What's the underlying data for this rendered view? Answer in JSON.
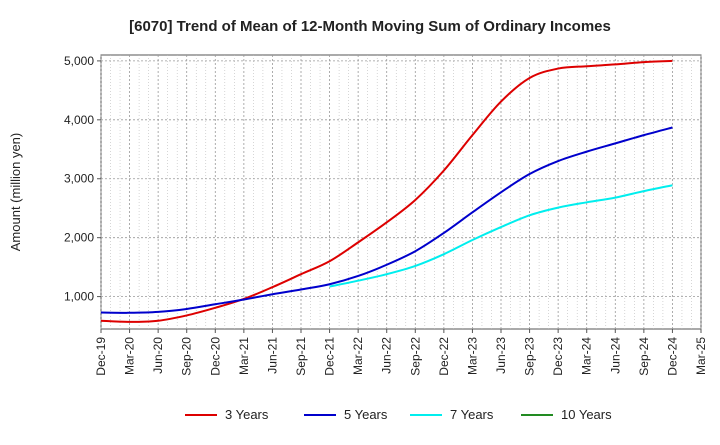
{
  "chart_data": {
    "type": "line",
    "title": "[6070]  Trend of Mean of 12-Month Moving Sum of Ordinary Incomes",
    "xlabel": "",
    "ylabel": "Amount (million yen)",
    "ylim": [
      450,
      5100
    ],
    "yticks": [
      1000,
      2000,
      3000,
      4000,
      5000
    ],
    "ytick_labels": [
      "1,000",
      "2,000",
      "3,000",
      "4,000",
      "5,000"
    ],
    "x_index_range": [
      0,
      63
    ],
    "xticks": [
      0,
      3,
      6,
      9,
      12,
      15,
      18,
      21,
      24,
      27,
      30,
      33,
      36,
      39,
      42,
      45,
      48,
      51,
      54,
      57,
      60,
      63
    ],
    "xtick_labels": [
      "Dec-19",
      "Mar-20",
      "Jun-20",
      "Sep-20",
      "Dec-20",
      "Mar-21",
      "Jun-21",
      "Sep-21",
      "Dec-21",
      "Mar-22",
      "Jun-22",
      "Sep-22",
      "Dec-22",
      "Mar-23",
      "Jun-23",
      "Sep-23",
      "Dec-23",
      "Mar-24",
      "Jun-24",
      "Sep-24",
      "Dec-24",
      "Mar-25"
    ],
    "grid": true,
    "legend_position": "bottom",
    "series": [
      {
        "name": "3 Years",
        "color": "#dd0000",
        "x": [
          0,
          3,
          6,
          9,
          12,
          15,
          18,
          21,
          24,
          27,
          30,
          33,
          36,
          39,
          42,
          45,
          48,
          51,
          54,
          57,
          60
        ],
        "values": [
          590,
          570,
          590,
          680,
          810,
          960,
          1160,
          1380,
          1600,
          1920,
          2260,
          2640,
          3140,
          3740,
          4310,
          4710,
          4870,
          4910,
          4940,
          4980,
          5000
        ]
      },
      {
        "name": "5 Years",
        "color": "#0000cc",
        "x": [
          0,
          3,
          6,
          9,
          12,
          15,
          18,
          21,
          24,
          27,
          30,
          33,
          36,
          39,
          42,
          45,
          48,
          51,
          54,
          57,
          60
        ],
        "values": [
          730,
          725,
          740,
          790,
          870,
          950,
          1040,
          1120,
          1210,
          1350,
          1540,
          1770,
          2080,
          2430,
          2770,
          3080,
          3300,
          3460,
          3600,
          3740,
          3870
        ]
      },
      {
        "name": "7 Years",
        "color": "#00eeee",
        "x": [
          24,
          27,
          30,
          33,
          36,
          39,
          42,
          45,
          48,
          51,
          54,
          57,
          60
        ],
        "values": [
          1170,
          1270,
          1380,
          1520,
          1720,
          1960,
          2180,
          2380,
          2510,
          2600,
          2680,
          2790,
          2890
        ]
      },
      {
        "name": "10 Years",
        "color": "#228b22",
        "x": [],
        "values": []
      }
    ]
  }
}
